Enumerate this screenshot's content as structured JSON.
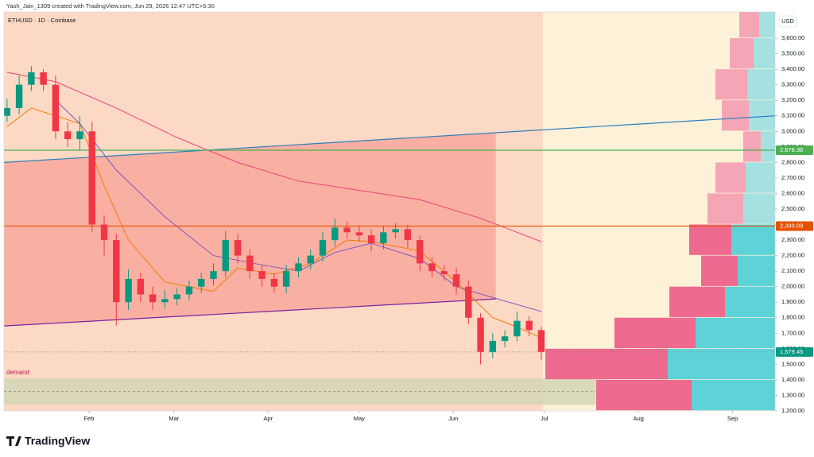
{
  "header": {
    "credit": "Yash_Jain_1309 created with TradingView.com, Jun 29, 2026 12:47 UTC+5:30",
    "symbol": "ETHUSD · 1D · Coinbase",
    "currency": "USD",
    "logo": "TradingView"
  },
  "chart_data": {
    "type": "candlestick",
    "x": [
      4,
      8,
      12,
      16,
      20,
      24,
      28,
      32,
      36,
      40,
      44,
      48,
      52,
      56,
      60,
      64,
      68,
      72,
      76,
      80,
      84,
      88,
      92,
      96,
      100,
      104,
      108,
      112,
      116,
      120,
      124,
      128,
      132,
      136,
      140,
      144,
      148,
      152,
      156,
      160,
      164,
      168,
      172,
      176,
      180
    ],
    "open": [
      3100,
      3150,
      3300,
      3380,
      3300,
      3000,
      2950,
      3000,
      2400,
      2300,
      1900,
      2050,
      1950,
      1900,
      1920,
      1950,
      2000,
      2050,
      2100,
      2300,
      2200,
      2100,
      2050,
      2000,
      2100,
      2150,
      2200,
      2300,
      2380,
      2350,
      2330,
      2280,
      2350,
      2370,
      2300,
      2150,
      2100,
      2080,
      2000,
      1800,
      1580,
      1650,
      1680,
      1780,
      1720
    ],
    "high": [
      3210,
      3360,
      3420,
      3400,
      3360,
      3060,
      3100,
      3060,
      2460,
      2340,
      2110,
      2090,
      2000,
      1980,
      1990,
      2040,
      2090,
      2150,
      2360,
      2340,
      2240,
      2140,
      2090,
      2140,
      2190,
      2240,
      2350,
      2440,
      2420,
      2390,
      2370,
      2390,
      2410,
      2400,
      2330,
      2190,
      2140,
      2120,
      2040,
      1830,
      1700,
      1720,
      1840,
      1810,
      1740
    ],
    "low": [
      3060,
      3110,
      3260,
      3260,
      2950,
      2900,
      2880,
      2350,
      2200,
      1750,
      1850,
      1900,
      1850,
      1860,
      1880,
      1910,
      1960,
      2010,
      2060,
      2150,
      2050,
      2000,
      1960,
      1960,
      2060,
      2110,
      2160,
      2260,
      2310,
      2290,
      2230,
      2240,
      2310,
      2250,
      2100,
      2060,
      2040,
      1950,
      1760,
      1500,
      1540,
      1610,
      1650,
      1680,
      1530
    ],
    "close": [
      3150,
      3300,
      3380,
      3300,
      3000,
      2950,
      3000,
      2400,
      2300,
      1900,
      2050,
      1950,
      1900,
      1920,
      1950,
      2000,
      2050,
      2100,
      2300,
      2200,
      2100,
      2050,
      2000,
      2100,
      2150,
      2200,
      2300,
      2380,
      2350,
      2330,
      2280,
      2350,
      2370,
      2300,
      2150,
      2100,
      2080,
      2000,
      1800,
      1580,
      1650,
      1680,
      1780,
      1720,
      1580
    ],
    "up_color": "#089981",
    "down_color": "#f23645",
    "xlim": [
      3,
      257
    ],
    "xticks": [
      {
        "value": 31,
        "label": "Feb"
      },
      {
        "value": 59,
        "label": "Mar"
      },
      {
        "value": 90,
        "label": "Apr"
      },
      {
        "value": 120,
        "label": "May"
      },
      {
        "value": 151,
        "label": "Jun"
      },
      {
        "value": 181,
        "label": "Jul"
      },
      {
        "value": 212,
        "label": "Aug"
      },
      {
        "value": 243,
        "label": "Sep"
      }
    ],
    "ylim": [
      1200,
      3769
    ],
    "yticks": [
      {
        "value": 1200,
        "label": "1,200.00"
      },
      {
        "value": 1300,
        "label": "1,300.00"
      },
      {
        "value": 1400,
        "label": "1,400.00"
      },
      {
        "value": 1500,
        "label": "1,500.00"
      },
      {
        "value": 1600,
        "label": "1,600.00"
      },
      {
        "value": 1700,
        "label": "1,700.00"
      },
      {
        "value": 1800,
        "label": "1,800.00"
      },
      {
        "value": 1900,
        "label": "1,900.00"
      },
      {
        "value": 2000,
        "label": "2,000.00"
      },
      {
        "value": 2100,
        "label": "2,100.00"
      },
      {
        "value": 2200,
        "label": "2,200.00"
      },
      {
        "value": 2300,
        "label": "2,300.00"
      },
      {
        "value": 2400,
        "label": "2,400.00"
      },
      {
        "value": 2500,
        "label": "2,500.00"
      },
      {
        "value": 2600,
        "label": "2,600.00"
      },
      {
        "value": 2700,
        "label": "2,700.00"
      },
      {
        "value": 2800,
        "label": "2,800.00"
      },
      {
        "value": 2900,
        "label": "2,900.00"
      },
      {
        "value": 3000,
        "label": "3,000.00"
      },
      {
        "value": 3100,
        "label": "3,100.00"
      },
      {
        "value": 3200,
        "label": "3,200.00"
      },
      {
        "value": 3300,
        "label": "3,300.00"
      },
      {
        "value": 3400,
        "label": "3,400.00"
      },
      {
        "value": 3500,
        "label": "3,500.00"
      },
      {
        "value": 3600,
        "label": "3,600.00"
      }
    ],
    "history_bg": "#fcd9c4",
    "future_bg": "#fdf1d8",
    "channel_fill": "#f9b0a2",
    "moving_averages": [
      {
        "color": "#f57c00",
        "x": [
          4,
          12,
          28,
          36,
          44,
          56,
          72,
          80,
          92,
          104,
          116,
          124,
          140,
          152,
          164,
          172,
          180
        ],
        "values": [
          3030,
          3150,
          3050,
          2650,
          2300,
          2030,
          1970,
          2120,
          2080,
          2150,
          2300,
          2290,
          2230,
          2030,
          1800,
          1740,
          1670
        ]
      },
      {
        "color": "#7e57c2",
        "x": [
          20,
          28,
          40,
          56,
          72,
          88,
          100,
          112,
          124,
          140,
          152,
          164,
          180
        ],
        "values": [
          3200,
          3050,
          2750,
          2450,
          2200,
          2140,
          2100,
          2220,
          2280,
          2180,
          2000,
          1930,
          1840
        ]
      },
      {
        "color": "#ec407a",
        "x": [
          4,
          20,
          40,
          60,
          80,
          100,
          120,
          140,
          160,
          180
        ],
        "values": [
          3380,
          3320,
          3150,
          2960,
          2800,
          2680,
          2620,
          2560,
          2440,
          2290
        ]
      }
    ],
    "trendlines": [
      {
        "color": "#2a7fc0",
        "x": [
          3,
          257
        ],
        "values": [
          2800,
          3100
        ]
      },
      {
        "color": "#7b1fa2",
        "x": [
          3,
          165
        ],
        "values": [
          1747,
          1921
        ]
      }
    ],
    "levels": [
      {
        "value": 2878.38,
        "label": "2,878.38",
        "color": "#4caf50",
        "style": "solid"
      },
      {
        "value": 2390.09,
        "label": "2,390.09",
        "color": "#e65100",
        "style": "solid"
      },
      {
        "value": 1579.45,
        "label": "1,579.45",
        "color": "#089981",
        "style": "dotted"
      }
    ],
    "demand_zone": {
      "label": "demand",
      "low": 1240,
      "high": 1410,
      "start": 3,
      "end": 198,
      "color": "#c2185b",
      "fill": "#d4d6b6"
    },
    "volume_profile": {
      "value_area": [
        1200,
        2400
      ],
      "up_color": "#5dd3d8",
      "down_color": "#ee6a8f",
      "faded_up_color": "#a4e1e0",
      "faded_down_color": "#f4a6b6",
      "bins": [
        {
          "low": 1200,
          "high": 1400,
          "up": 105,
          "down": 120
        },
        {
          "low": 1400,
          "high": 1600,
          "up": 135,
          "down": 154
        },
        {
          "low": 1600,
          "high": 1800,
          "up": 100,
          "down": 102
        },
        {
          "low": 1800,
          "high": 2000,
          "up": 63,
          "down": 70
        },
        {
          "low": 2000,
          "high": 2200,
          "up": 47,
          "down": 46
        },
        {
          "low": 2200,
          "high": 2400,
          "up": 55,
          "down": 53
        },
        {
          "low": 2400,
          "high": 2600,
          "up": 40,
          "down": 45
        },
        {
          "low": 2600,
          "high": 2800,
          "up": 37,
          "down": 38
        },
        {
          "low": 2800,
          "high": 3000,
          "up": 18,
          "down": 22
        },
        {
          "low": 3000,
          "high": 3200,
          "up": 33,
          "down": 34
        },
        {
          "low": 3200,
          "high": 3400,
          "up": 35,
          "down": 40
        },
        {
          "low": 3400,
          "high": 3600,
          "up": 27,
          "down": 30
        },
        {
          "low": 3600,
          "high": 3769,
          "up": 20,
          "down": 25
        }
      ]
    }
  }
}
